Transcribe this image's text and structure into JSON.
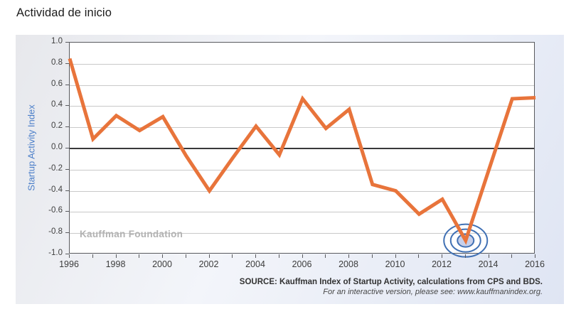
{
  "page": {
    "title": "Actividad de inicio"
  },
  "chart": {
    "y_axis_label": "Startup Activity Index",
    "watermark": "Kauffman Foundation",
    "source_line1": "SOURCE: Kauffman Index of Startup Activity, calculations from CPS and BDS.",
    "source_line2": "For an interactive version, please see: www.kauffmanindex.org.",
    "colors": {
      "line": "#E8743B",
      "bullseye_ring": "#4070B4",
      "bullseye_fill": "#C7D0EA",
      "axis_title": "#4C7FC9",
      "watermark": "#B2B2B2",
      "gridline": "#C9C9C9",
      "zero_line": "#38383A"
    }
  },
  "chart_data": {
    "type": "line",
    "title": "Actividad de inicio",
    "xlabel": "",
    "ylabel": "Startup Activity Index",
    "x": [
      1996,
      1997,
      1998,
      1999,
      2000,
      2001,
      2002,
      2003,
      2004,
      2005,
      2006,
      2007,
      2008,
      2009,
      2010,
      2011,
      2012,
      2013,
      2014,
      2015,
      2016
    ],
    "series": [
      {
        "name": "Startup Activity Index",
        "values": [
          0.85,
          0.09,
          0.31,
          0.17,
          0.3,
          -0.07,
          -0.4,
          -0.09,
          0.21,
          -0.06,
          0.47,
          0.19,
          0.37,
          -0.34,
          -0.4,
          -0.62,
          -0.48,
          -0.87,
          -0.2,
          0.47,
          0.48
        ]
      }
    ],
    "xlim": [
      1996,
      2016
    ],
    "ylim": [
      -1.0,
      1.0
    ],
    "ytick_step": 0.2,
    "xticks_labeled": [
      1996,
      1998,
      2000,
      2002,
      2004,
      2006,
      2008,
      2010,
      2012,
      2014,
      2016
    ],
    "grid": "horizontal",
    "legend": "none",
    "highlight": {
      "year": 2013,
      "value": -0.87,
      "marker": "bullseye"
    }
  }
}
